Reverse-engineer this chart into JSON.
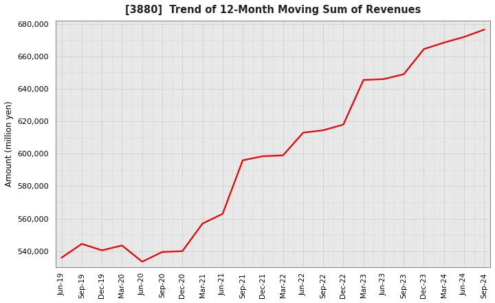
{
  "title": "[3880]  Trend of 12-Month Moving Sum of Revenues",
  "ylabel": "Amount (million yen)",
  "line_color": "#ee0000",
  "bg_color": "#ffffff",
  "plot_bg_color": "#e8e8e8",
  "grid_color": "#999999",
  "ylim": [
    530000,
    682000
  ],
  "yticks": [
    540000,
    560000,
    580000,
    600000,
    620000,
    640000,
    660000,
    680000
  ],
  "labels": [
    "Jun-19",
    "Sep-19",
    "Dec-19",
    "Mar-20",
    "Jun-20",
    "Sep-20",
    "Dec-20",
    "Mar-21",
    "Jun-21",
    "Sep-21",
    "Dec-21",
    "Mar-22",
    "Jun-22",
    "Sep-22",
    "Dec-22",
    "Mar-23",
    "Jun-23",
    "Sep-23",
    "Dec-23",
    "Mar-24",
    "Jun-24",
    "Sep-24"
  ],
  "values": [
    536000,
    544500,
    540500,
    543500,
    533500,
    539500,
    540000,
    557000,
    563000,
    596000,
    598500,
    599000,
    613000,
    614500,
    618000,
    645500,
    646000,
    649000,
    664500,
    668500,
    672000,
    676500
  ]
}
